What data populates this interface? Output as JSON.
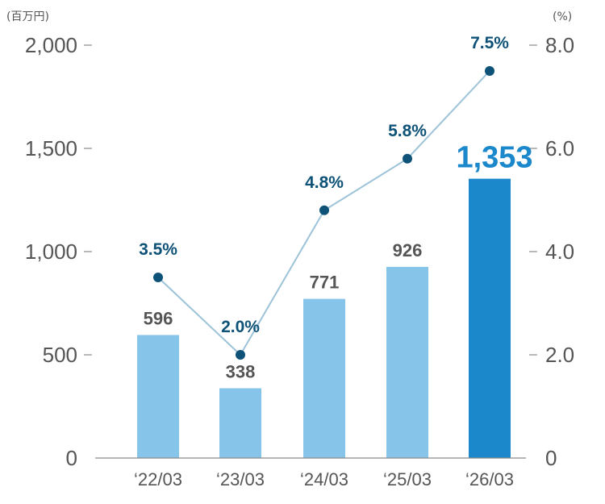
{
  "chart_data": {
    "type": "bar",
    "categories": [
      "‘22/03",
      "‘23/03",
      "‘24/03",
      "‘25/03",
      "‘26/03"
    ],
    "series": [
      {
        "axis": "left",
        "type": "bar",
        "values": [
          596,
          338,
          771,
          926,
          1353
        ],
        "labels": [
          "596",
          "338",
          "771",
          "926",
          "1,353"
        ],
        "colors": [
          "#87c4ea",
          "#87c4ea",
          "#87c4ea",
          "#87c4ea",
          "#1b88cc"
        ]
      },
      {
        "axis": "right",
        "type": "line",
        "values": [
          3.5,
          2.0,
          4.8,
          5.8,
          7.5
        ],
        "labels": [
          "3.5%",
          "2.0%",
          "4.8%",
          "5.8%",
          "7.5%"
        ],
        "color": "#0e5278",
        "line_color": "#9cc3d8"
      }
    ],
    "y_left": {
      "unit": "(百万円)",
      "ticks": [
        0,
        500,
        1000,
        1500,
        2000
      ],
      "tick_labels": [
        "0",
        "500",
        "1,000",
        "1,500",
        "2,000"
      ],
      "ylim": [
        0,
        2000
      ]
    },
    "y_right": {
      "unit": "(%)",
      "ticks": [
        0,
        2,
        4,
        6,
        8
      ],
      "tick_labels": [
        "0",
        "2.0",
        "4.0",
        "6.0",
        "8.0"
      ],
      "ylim": [
        0,
        8
      ]
    },
    "grid": false,
    "legend": "none"
  }
}
